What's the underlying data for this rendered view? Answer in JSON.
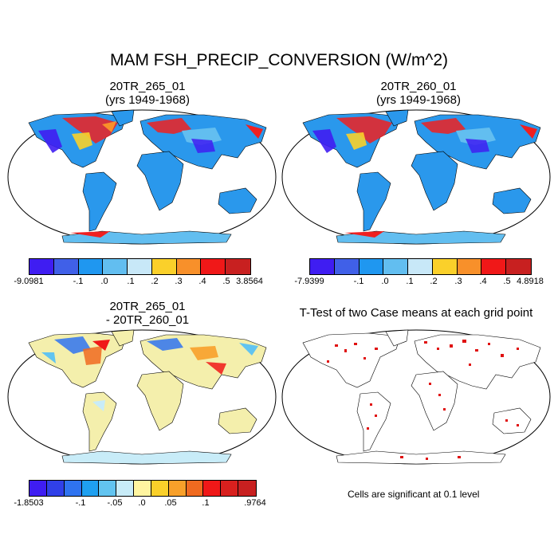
{
  "title": "MAM FSH_PRECIP_CONVERSION (W/m^2)",
  "panels": {
    "p1": {
      "line1": "20TR_265_01",
      "line2": "(yrs 1949-1968)"
    },
    "p2": {
      "line1": "20TR_260_01",
      "line2": "(yrs 1949-1968)"
    },
    "p3": {
      "line1": "20TR_265_01",
      "line2": "- 20TR_260_01"
    },
    "p4": {
      "line1": "T-Test of two Case means at each grid point"
    }
  },
  "colorbars": {
    "cb1": {
      "colors": [
        "#3f1df2",
        "#4060e8",
        "#1f97f0",
        "#62bef0",
        "#c8e8f8",
        "#fad02a",
        "#f8902a",
        "#f01818",
        "#c82020"
      ],
      "labels": [
        "-9.0981",
        "-.1",
        ".0",
        ".1",
        ".2",
        ".3",
        ".4",
        ".5",
        "3.8564"
      ]
    },
    "cb2": {
      "colors": [
        "#3f1df2",
        "#4060e8",
        "#1f97f0",
        "#62bef0",
        "#c8e8f8",
        "#fad02a",
        "#f8902a",
        "#f01818",
        "#c82020"
      ],
      "labels": [
        "-7.9399",
        "-.1",
        ".0",
        ".1",
        ".2",
        ".3",
        ".4",
        ".5",
        "4.8918"
      ]
    },
    "cb3": {
      "colors": [
        "#3f1df2",
        "#3040e8",
        "#2f73f0",
        "#1fa0f0",
        "#62c4f0",
        "#c8ecf8",
        "#fff5a0",
        "#fad02a",
        "#f8a02a",
        "#f06a20",
        "#f01818",
        "#d8201e",
        "#c82020"
      ],
      "labels": [
        "-1.8503",
        "-.1",
        "-.05",
        ".0",
        ".05",
        ".1",
        ".9764"
      ]
    }
  },
  "note": "Cells are significant at 0.1 level",
  "colors": {
    "ocean": "#ffffff",
    "land_p1p2": "#2a98ec",
    "land_diff": "#f4efac",
    "ttest_sig": "#e01010",
    "coast": "#000000"
  }
}
